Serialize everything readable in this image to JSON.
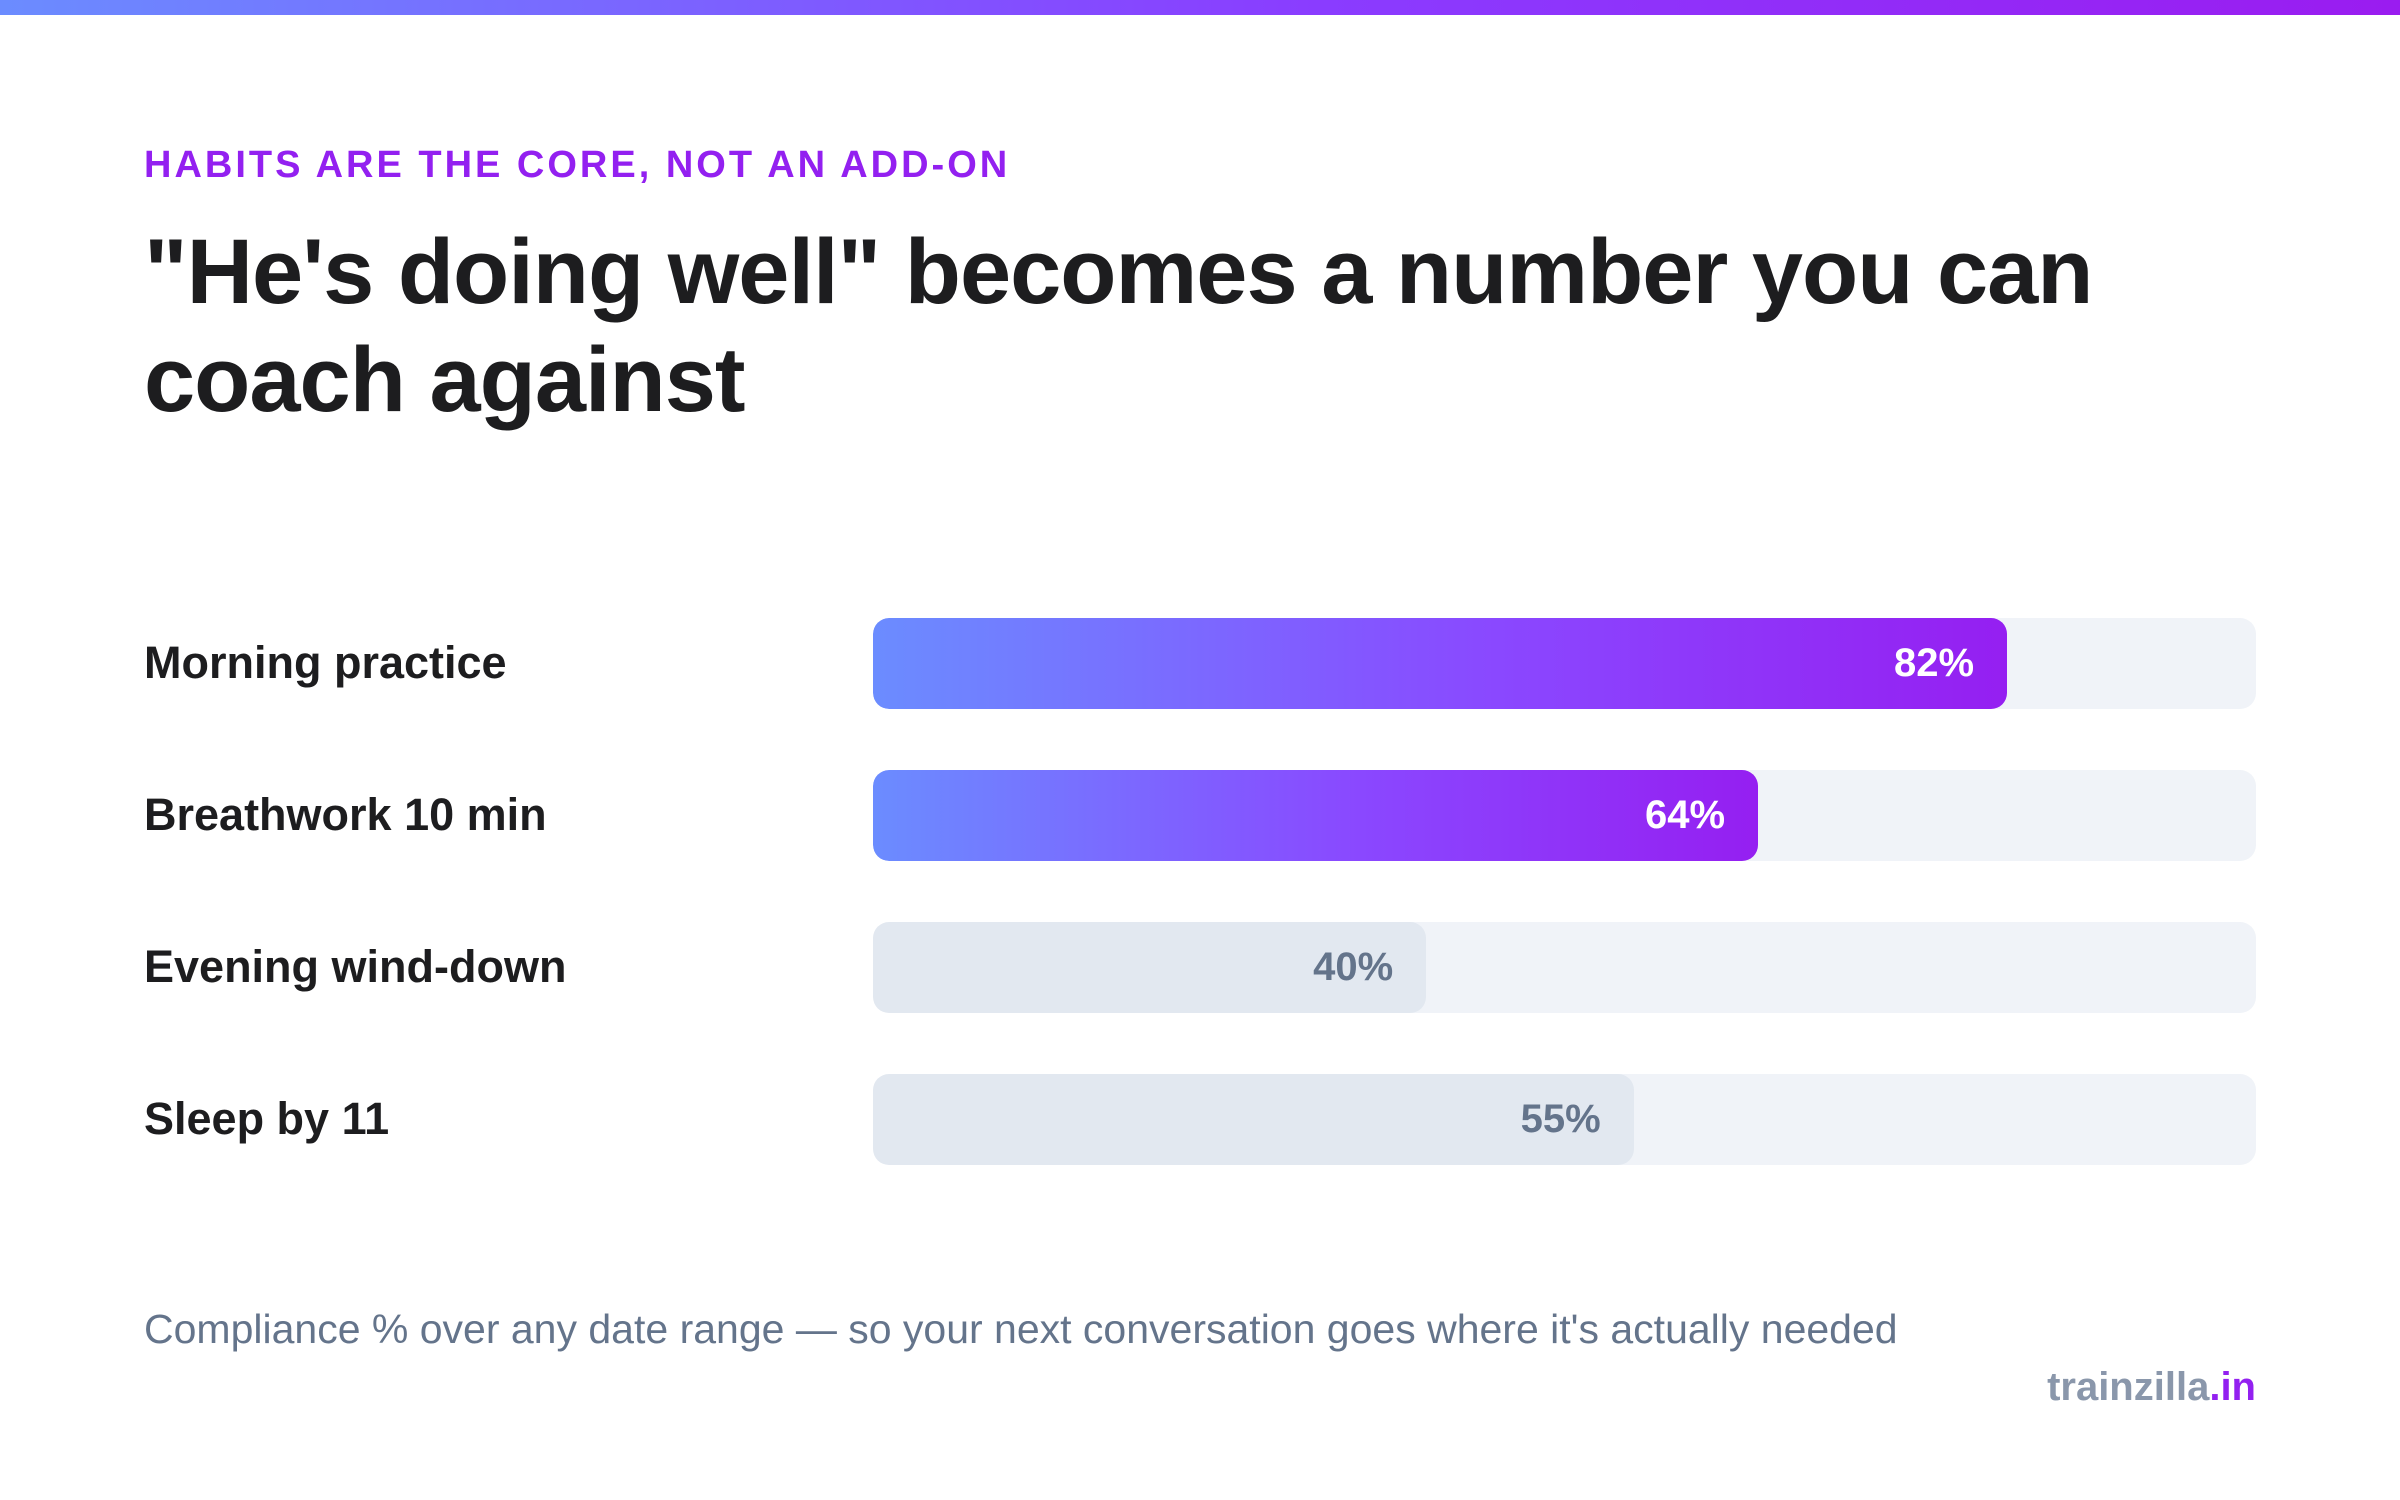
{
  "header": {
    "eyebrow": "HABITS ARE THE CORE, NOT AN ADD-ON",
    "title": "\"He's doing well\" becomes a number you can coach against"
  },
  "chart_data": {
    "type": "bar",
    "orientation": "horizontal",
    "categories": [
      "Morning practice",
      "Breathwork 10 min",
      "Evening wind-down",
      "Sleep by 11"
    ],
    "values": [
      82,
      64,
      40,
      55
    ],
    "value_labels": [
      "82%",
      "64%",
      "40%",
      "55%"
    ],
    "highlighted": [
      true,
      true,
      false,
      false
    ],
    "xlim": [
      0,
      100
    ],
    "grid": false,
    "colors": {
      "highlight_start": "#6b8cff",
      "highlight_end": "#951ff1",
      "muted_fill": "#e2e8f0",
      "track": "#f0f3f8",
      "muted_text": "#64748b"
    }
  },
  "footer": {
    "note": "Compliance % over any date range — so your next conversation goes where it's actually needed",
    "brand_name": "trainzilla",
    "brand_tld": ".in"
  },
  "colors": {
    "accent": "#9320f0",
    "text": "#1d1d1f"
  }
}
